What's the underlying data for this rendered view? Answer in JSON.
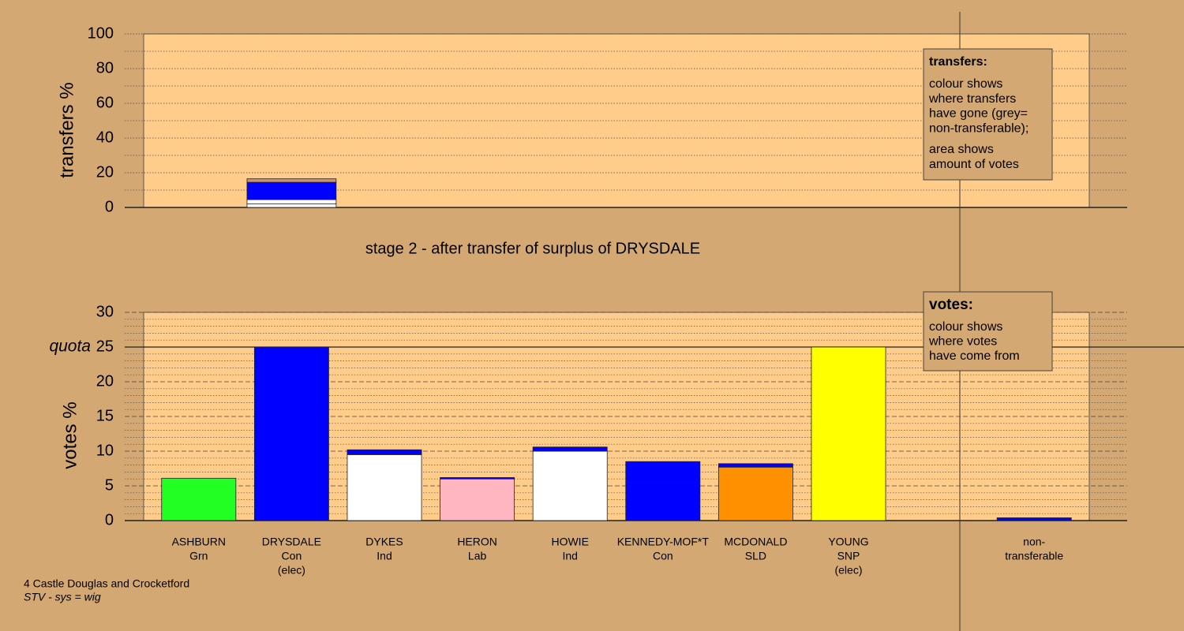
{
  "chart_data": [
    {
      "type": "stacked-bar",
      "ylabel": "transfers %",
      "ylim": [
        0,
        100
      ],
      "yticks": [
        0,
        20,
        40,
        60,
        80,
        100
      ],
      "minor_yticks": [
        10,
        30,
        50,
        70,
        90
      ],
      "stacks": [
        [],
        [
          {
            "value": 2,
            "color": "#ffffff"
          },
          {
            "value": 2.5,
            "color": "#ffffff"
          },
          {
            "value": 10,
            "color": "#0000ff"
          },
          {
            "value": 2,
            "color": "#c8966a"
          }
        ],
        [],
        [],
        [],
        [],
        [],
        [],
        [],
        []
      ],
      "note": {
        "title": "transfers:",
        "lines": [
          "colour shows",
          "where transfers",
          "have gone (grey=",
          "non-transferable);"
        ],
        "lines2": [
          "area shows",
          "amount of votes"
        ]
      }
    },
    {
      "type": "stacked-bar",
      "title": "stage 2 - after transfer of surplus of DRYSDALE",
      "ylabel": "votes %",
      "ylim": [
        0,
        30
      ],
      "yticks": [
        0,
        5,
        10,
        15,
        20,
        25,
        30
      ],
      "minor_yticks": [
        1,
        2,
        3,
        4,
        6,
        7,
        8,
        9,
        11,
        12,
        13,
        14,
        16,
        17,
        18,
        19,
        21,
        22,
        23,
        24,
        26,
        27,
        28,
        29
      ],
      "quota": {
        "value": 25,
        "label": "quota"
      },
      "categories": [
        [
          "ASHBURN",
          "Grn"
        ],
        [
          "DRYSDALE",
          "Con",
          "(elec)"
        ],
        [
          "DYKES",
          "Ind"
        ],
        [
          "HERON",
          "Lab"
        ],
        [
          "HOWIE",
          "Ind"
        ],
        [
          "KENNEDY-MOF*T",
          "Con"
        ],
        [
          "MCDONALD",
          "SLD"
        ],
        [
          "YOUNG",
          "SNP",
          "(elec)"
        ],
        null,
        [
          "non-",
          "transferable"
        ]
      ],
      "stacks": [
        [
          {
            "value": 6.1,
            "color": "#22ff22"
          }
        ],
        [
          {
            "value": 25,
            "color": "#0000ff"
          }
        ],
        [
          {
            "value": 9.5,
            "color": "#ffffff"
          },
          {
            "value": 0.7,
            "color": "#0000ff"
          }
        ],
        [
          {
            "value": 6.0,
            "color": "#ffb6c1"
          },
          {
            "value": 0.2,
            "color": "#0000ff"
          }
        ],
        [
          {
            "value": 10.0,
            "color": "#ffffff"
          },
          {
            "value": 0.6,
            "color": "#0000ff"
          }
        ],
        [
          {
            "value": 5.5,
            "color": "#0000ff"
          },
          {
            "value": 3.0,
            "color": "#0000ff"
          }
        ],
        [
          {
            "value": 7.7,
            "color": "#ff9000"
          },
          {
            "value": 0.5,
            "color": "#0000ff"
          }
        ],
        [
          {
            "value": 25,
            "color": "#ffff00"
          }
        ],
        [],
        [
          {
            "value": 0.4,
            "color": "#0000ff"
          }
        ]
      ],
      "note": {
        "title": "votes:",
        "lines": [
          "colour shows",
          "where votes",
          "have come from"
        ]
      }
    }
  ],
  "footer": {
    "area": "4 Castle Douglas and Crocketford",
    "system": "STV - sys = wig"
  }
}
